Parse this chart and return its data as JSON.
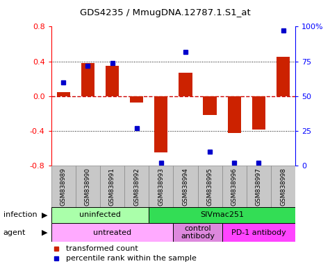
{
  "title": "GDS4235 / MmugDNA.12787.1.S1_at",
  "samples": [
    "GSM838989",
    "GSM838990",
    "GSM838991",
    "GSM838992",
    "GSM838993",
    "GSM838994",
    "GSM838995",
    "GSM838996",
    "GSM838997",
    "GSM838998"
  ],
  "red_values": [
    0.05,
    0.38,
    0.35,
    -0.07,
    -0.65,
    0.27,
    -0.22,
    -0.42,
    -0.38,
    0.45
  ],
  "blue_values": [
    60,
    72,
    74,
    27,
    2,
    82,
    10,
    2,
    2,
    97
  ],
  "ylim": [
    -0.8,
    0.8
  ],
  "yticks_left": [
    -0.8,
    -0.4,
    0.0,
    0.4,
    0.8
  ],
  "yticks_right": [
    0,
    25,
    50,
    75,
    100
  ],
  "infection_groups": [
    {
      "label": "uninfected",
      "start": 0,
      "end": 4,
      "color": "#AAFFAA"
    },
    {
      "label": "SIVmac251",
      "start": 4,
      "end": 10,
      "color": "#33DD55"
    }
  ],
  "agent_groups": [
    {
      "label": "untreated",
      "start": 0,
      "end": 5,
      "color": "#FFAAFF"
    },
    {
      "label": "control\nantibody",
      "start": 5,
      "end": 7,
      "color": "#DD88DD"
    },
    {
      "label": "PD-1 antibody",
      "start": 7,
      "end": 10,
      "color": "#FF44FF"
    }
  ],
  "red_color": "#CC2200",
  "blue_color": "#0000CC",
  "zero_line_color": "#CC0000",
  "bar_width": 0.55,
  "legend_red": "transformed count",
  "legend_blue": "percentile rank within the sample",
  "label_bg": "#C8C8C8"
}
